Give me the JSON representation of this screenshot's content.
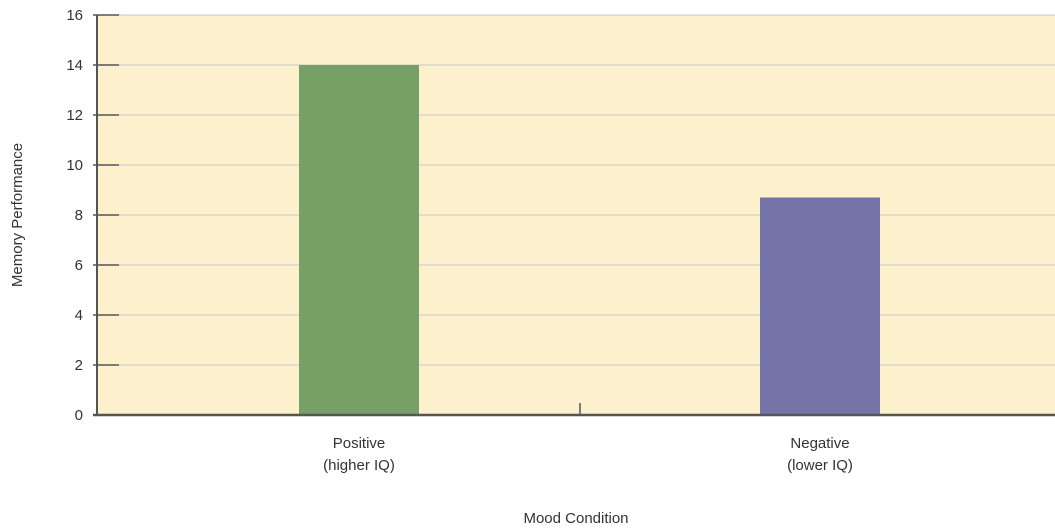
{
  "chart_data": {
    "type": "bar",
    "categories": [
      [
        "Positive",
        "(higher IQ)"
      ],
      [
        "Negative",
        "(lower IQ)"
      ]
    ],
    "values": [
      14,
      8.7
    ],
    "title": "",
    "xlabel": "Mood Condition",
    "ylabel": "Memory Performance",
    "ylim": [
      0,
      16
    ],
    "yticks": [
      0,
      2,
      4,
      6,
      8,
      10,
      12,
      14,
      16
    ],
    "grid": true,
    "legend": "none",
    "colors": {
      "plot_background": "#fdf0cc",
      "grid": "#c8c8c8",
      "axis": "#555555",
      "bars": [
        "#77a066",
        "#7474a9"
      ]
    }
  }
}
